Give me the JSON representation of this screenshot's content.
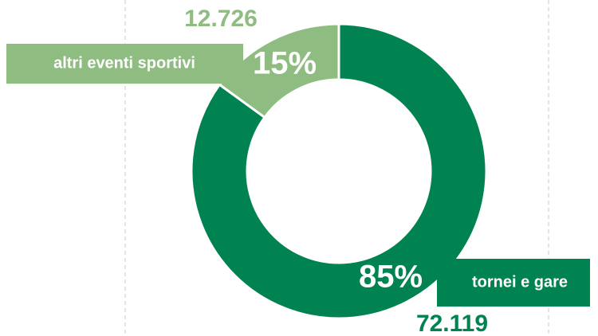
{
  "chart_data": {
    "type": "donut",
    "categories": [
      "tornei e gare",
      "altri eventi sportivi"
    ],
    "values": [
      85,
      15
    ],
    "value_labels": [
      "85%",
      "15%"
    ],
    "counts": [
      {
        "value": 72119,
        "label": "72.119"
      },
      {
        "value": 12726,
        "label": "12.726"
      }
    ],
    "colors": [
      "#008350",
      "#8fbc80"
    ]
  }
}
